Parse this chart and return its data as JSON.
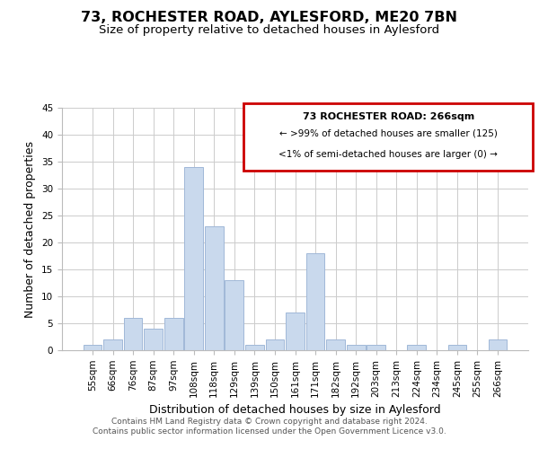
{
  "title": "73, ROCHESTER ROAD, AYLESFORD, ME20 7BN",
  "subtitle": "Size of property relative to detached houses in Aylesford",
  "xlabel": "Distribution of detached houses by size in Aylesford",
  "ylabel": "Number of detached properties",
  "footer_line1": "Contains HM Land Registry data © Crown copyright and database right 2024.",
  "footer_line2": "Contains public sector information licensed under the Open Government Licence v3.0.",
  "bar_labels": [
    "55sqm",
    "66sqm",
    "76sqm",
    "87sqm",
    "97sqm",
    "108sqm",
    "118sqm",
    "129sqm",
    "139sqm",
    "150sqm",
    "161sqm",
    "171sqm",
    "182sqm",
    "192sqm",
    "203sqm",
    "213sqm",
    "224sqm",
    "234sqm",
    "245sqm",
    "255sqm",
    "266sqm"
  ],
  "bar_values": [
    1,
    2,
    6,
    4,
    6,
    34,
    23,
    13,
    1,
    2,
    7,
    18,
    2,
    1,
    1,
    0,
    1,
    0,
    1,
    0,
    2
  ],
  "bar_color": "#c9d9ed",
  "bar_edge_color": "#a0b8d8",
  "annotation_box_title": "73 ROCHESTER ROAD: 266sqm",
  "annotation_line1": "← >99% of detached houses are smaller (125)",
  "annotation_line2": "<1% of semi-detached houses are larger (0) →",
  "annotation_box_edge_color": "#cc0000",
  "ylim": [
    0,
    45
  ],
  "yticks": [
    0,
    5,
    10,
    15,
    20,
    25,
    30,
    35,
    40,
    45
  ],
  "grid_color": "#cccccc",
  "background_color": "#ffffff",
  "title_fontsize": 11.5,
  "subtitle_fontsize": 9.5,
  "axis_label_fontsize": 9,
  "tick_fontsize": 7.5,
  "footer_fontsize": 6.5,
  "annotation_fontsize_title": 8,
  "annotation_fontsize_lines": 7.5
}
